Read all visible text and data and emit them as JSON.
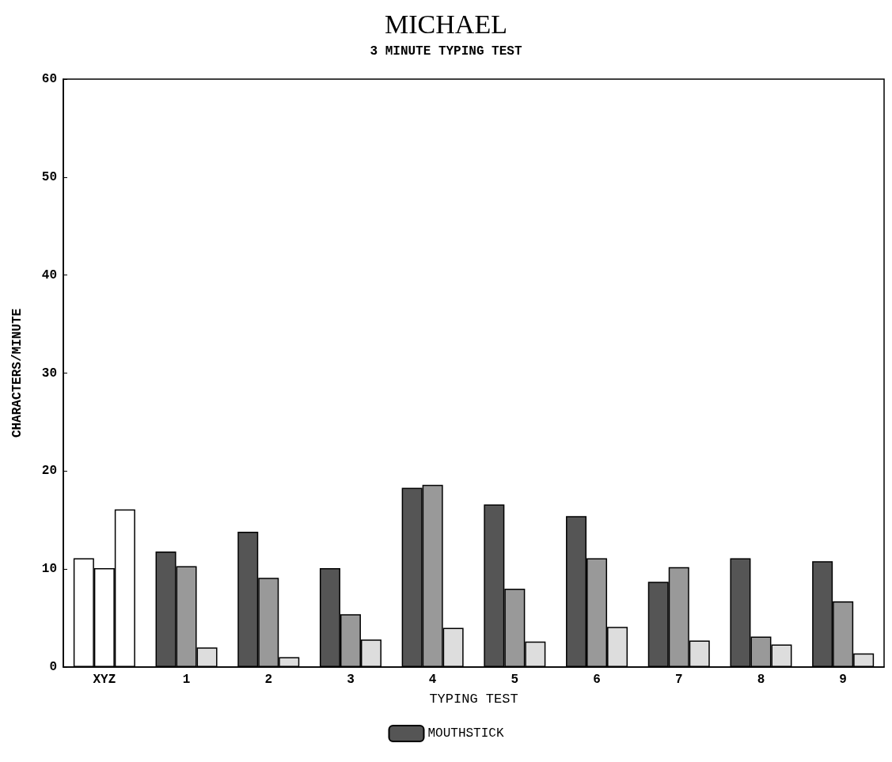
{
  "chart_data": {
    "type": "bar",
    "title": "MICHAEL",
    "subtitle": "3 MINUTE TYPING TEST",
    "xlabel": "TYPING TEST",
    "ylabel": "CHARACTERS/MINUTE",
    "categories": [
      "XYZ",
      "1",
      "2",
      "3",
      "4",
      "5",
      "6",
      "7",
      "8",
      "9"
    ],
    "series": [
      {
        "name": "MOUTHSTICK",
        "color": "#555555",
        "colors": [
          "#ffffff",
          "#555555",
          "#555555",
          "#555555",
          "#555555",
          "#555555",
          "#555555",
          "#555555",
          "#555555",
          "#555555"
        ],
        "values": [
          11.1,
          11.8,
          13.8,
          10.1,
          18.3,
          16.6,
          15.4,
          8.7,
          11.1,
          10.8
        ]
      },
      {
        "color": "#999999",
        "colors": [
          "#ffffff",
          "#999999",
          "#999999",
          "#999999",
          "#999999",
          "#999999",
          "#999999",
          "#999999",
          "#999999",
          "#999999"
        ],
        "values": [
          10.1,
          10.3,
          9.1,
          5.4,
          18.6,
          8.0,
          11.1,
          10.2,
          3.1,
          6.7
        ]
      },
      {
        "color": "#dddddd",
        "colors": [
          "#ffffff",
          "#dddddd",
          "#dddddd",
          "#dddddd",
          "#dddddd",
          "#dddddd",
          "#dddddd",
          "#dddddd",
          "#dddddd",
          "#dddddd"
        ],
        "values": [
          16.1,
          2.0,
          1.0,
          2.8,
          4.0,
          2.6,
          4.1,
          2.7,
          2.3,
          1.4
        ]
      }
    ],
    "ylim": [
      0,
      60
    ],
    "yticks": [
      0,
      10,
      20,
      30,
      40,
      50,
      60
    ],
    "grid": false,
    "legend": "bottom"
  }
}
